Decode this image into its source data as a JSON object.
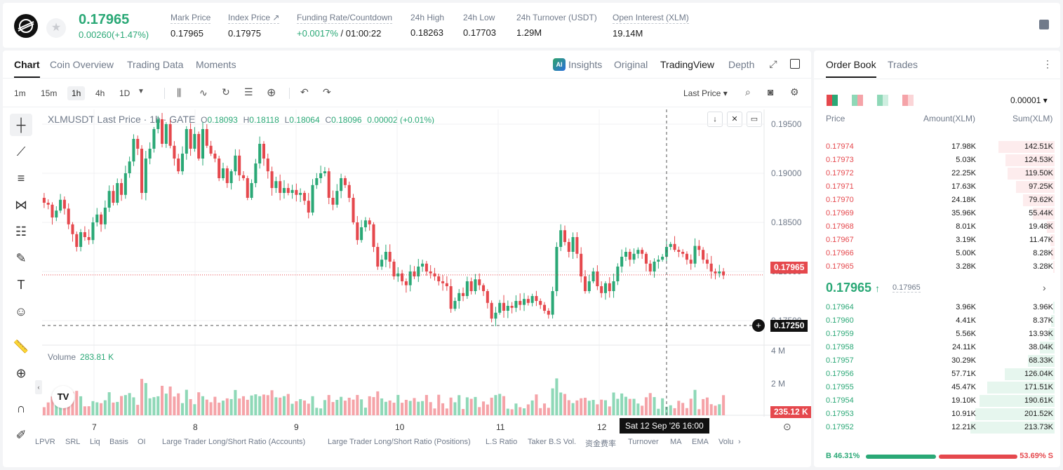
{
  "ticker": {
    "last_price": "0.17965",
    "change": "0.00260(+1.47%)",
    "stats": [
      {
        "label": "Mark Price",
        "value": "0.17965"
      },
      {
        "label": "Index Price ↗",
        "value": "0.17975"
      },
      {
        "label": "Funding Rate/Countdown",
        "value_green": "+0.0017%",
        "value": " / 01:00:22"
      },
      {
        "label": "24h High",
        "value": "0.18263"
      },
      {
        "label": "24h Low",
        "value": "0.17703"
      },
      {
        "label": "24h Turnover (USDT)",
        "value": "1.29M"
      },
      {
        "label": "Open Interest (XLM)",
        "value": "19.14M"
      }
    ]
  },
  "chart_panel": {
    "tabs": [
      "Chart",
      "Coin Overview",
      "Trading Data",
      "Moments"
    ],
    "views": {
      "insights": "Insights",
      "original": "Original",
      "tradingview": "TradingView",
      "depth": "Depth"
    },
    "ai_badge": "AI",
    "intervals": [
      "1m",
      "15m",
      "1h",
      "4h",
      "1D"
    ],
    "price_select": "Last Price",
    "ohlc": {
      "title": "XLMUSDT Last Price · 1h · GATE",
      "o_label": "O",
      "o": "0.18093",
      "h_label": "H",
      "h": "0.18118",
      "l_label": "L",
      "l": "0.18064",
      "c_label": "C",
      "c": "0.18096",
      "chg": "0.00002 (+0.01%)"
    },
    "current_price_tag": "0.17965",
    "cursor_price_tag": "0.17250",
    "volume_label": "Volume",
    "volume_value": "283.81 K",
    "volume_tag": "235.12 K",
    "crosshair_time": "Sat 12 Sep '26   16:00",
    "indicators": [
      "LPVR",
      "SRL",
      "Liq",
      "Basis",
      "OI",
      "Large Trader Long/Short Ratio (Accounts)",
      "Large Trader Long/Short Ratio (Positions)",
      "L.S Ratio",
      "Taker B.S Vol.",
      "资金费率",
      "Turnover",
      "MA",
      "EMA",
      "Volu"
    ]
  },
  "chart_data": {
    "type": "candlestick",
    "title": "XLMUSDT Last Price · 1h · GATE",
    "y_ticks": [
      "0.19500",
      "0.19000",
      "0.18500",
      "0.18000",
      "0.17500"
    ],
    "volume_ticks": [
      "4 M",
      "2 M"
    ],
    "x_ticks": [
      "7",
      "8",
      "9",
      "10",
      "11",
      "12"
    ],
    "ylim": [
      0.1725,
      0.1965
    ],
    "current_price": 0.17965,
    "candle_closes": [
      0.187,
      0.1868,
      0.1855,
      0.1862,
      0.1873,
      0.1864,
      0.1848,
      0.1838,
      0.1825,
      0.184,
      0.1835,
      0.1832,
      0.185,
      0.1858,
      0.1848,
      0.1865,
      0.1882,
      0.187,
      0.189,
      0.1878,
      0.19,
      0.1912,
      0.1935,
      0.1925,
      0.188,
      0.1915,
      0.1925,
      0.1945,
      0.1955,
      0.193,
      0.195,
      0.1928,
      0.1915,
      0.1902,
      0.192,
      0.1945,
      0.1925,
      0.194,
      0.1915,
      0.1945,
      0.1928,
      0.192,
      0.1915,
      0.1895,
      0.1905,
      0.189,
      0.1902,
      0.1918,
      0.1898,
      0.1895,
      0.1875,
      0.189,
      0.191,
      0.193,
      0.1915,
      0.1902,
      0.1885,
      0.1892,
      0.188,
      0.1885,
      0.188,
      0.1883,
      0.1878,
      0.188,
      0.1872,
      0.186,
      0.1888,
      0.1895,
      0.19,
      0.1902,
      0.1875,
      0.1868,
      0.1882,
      0.1895,
      0.1888,
      0.1875,
      0.185,
      0.1832,
      0.1845,
      0.1852,
      0.1848,
      0.1825,
      0.1805,
      0.1812,
      0.182,
      0.181,
      0.1795,
      0.1798,
      0.179,
      0.1786,
      0.18,
      0.1795,
      0.1805,
      0.1808,
      0.18,
      0.1798,
      0.1795,
      0.179,
      0.1788,
      0.1785,
      0.1762,
      0.177,
      0.1778,
      0.1775,
      0.179,
      0.178,
      0.1792,
      0.1786,
      0.178,
      0.1768,
      0.1752,
      0.1758,
      0.1768,
      0.176,
      0.1765,
      0.1763,
      0.177,
      0.1766,
      0.1772,
      0.1768,
      0.1775,
      0.177,
      0.1766,
      0.176,
      0.1756,
      0.178,
      0.1825,
      0.1842,
      0.183,
      0.182,
      0.1835,
      0.1818,
      0.1795,
      0.178,
      0.179,
      0.18,
      0.1785,
      0.1778,
      0.1788,
      0.178,
      0.179,
      0.1805,
      0.1815,
      0.182,
      0.1812,
      0.1818,
      0.1822,
      0.1818,
      0.1808,
      0.18,
      0.181,
      0.1812,
      0.1815,
      0.1825,
      0.1828,
      0.1822,
      0.182,
      0.1818,
      0.1812,
      0.1808,
      0.1826,
      0.1822,
      0.1812,
      0.1808,
      0.18,
      0.1798,
      0.18,
      0.1796
    ]
  },
  "order_book": {
    "tabs": [
      "Order Book",
      "Trades"
    ],
    "precision": "0.00001",
    "headers": {
      "price": "Price",
      "amount": "Amount(XLM)",
      "sum": "Sum(XLM)"
    },
    "asks": [
      {
        "price": "0.17974",
        "amount": "17.98K",
        "sum": "142.51K"
      },
      {
        "price": "0.17973",
        "amount": "5.03K",
        "sum": "124.53K"
      },
      {
        "price": "0.17972",
        "amount": "22.25K",
        "sum": "119.50K"
      },
      {
        "price": "0.17971",
        "amount": "17.63K",
        "sum": "97.25K"
      },
      {
        "price": "0.17970",
        "amount": "24.18K",
        "sum": "79.62K"
      },
      {
        "price": "0.17969",
        "amount": "35.96K",
        "sum": "55.44K"
      },
      {
        "price": "0.17968",
        "amount": "8.01K",
        "sum": "19.48K"
      },
      {
        "price": "0.17967",
        "amount": "3.19K",
        "sum": "11.47K"
      },
      {
        "price": "0.17966",
        "amount": "5.00K",
        "sum": "8.28K"
      },
      {
        "price": "0.17965",
        "amount": "3.28K",
        "sum": "3.28K"
      }
    ],
    "mid_price": "0.17965",
    "mid_arrow": "↑",
    "mark_price": "0.17965",
    "bids": [
      {
        "price": "0.17964",
        "amount": "3.96K",
        "sum": "3.96K"
      },
      {
        "price": "0.17960",
        "amount": "4.41K",
        "sum": "8.37K"
      },
      {
        "price": "0.17959",
        "amount": "5.56K",
        "sum": "13.93K"
      },
      {
        "price": "0.17958",
        "amount": "24.11K",
        "sum": "38.04K"
      },
      {
        "price": "0.17957",
        "amount": "30.29K",
        "sum": "68.33K"
      },
      {
        "price": "0.17956",
        "amount": "57.71K",
        "sum": "126.04K"
      },
      {
        "price": "0.17955",
        "amount": "45.47K",
        "sum": "171.51K"
      },
      {
        "price": "0.17954",
        "amount": "19.10K",
        "sum": "190.61K"
      },
      {
        "price": "0.17953",
        "amount": "10.91K",
        "sum": "201.52K"
      },
      {
        "price": "0.17952",
        "amount": "12.21K",
        "sum": "213.73K"
      }
    ],
    "buy_ratio": "B 46.31%",
    "sell_ratio": "53.69% S",
    "buy_fraction": 0.4631
  },
  "colors": {
    "up": "#2aa876",
    "down": "#e5484d",
    "up_light": "#8ed8b7",
    "down_light": "#f5a3a8"
  }
}
